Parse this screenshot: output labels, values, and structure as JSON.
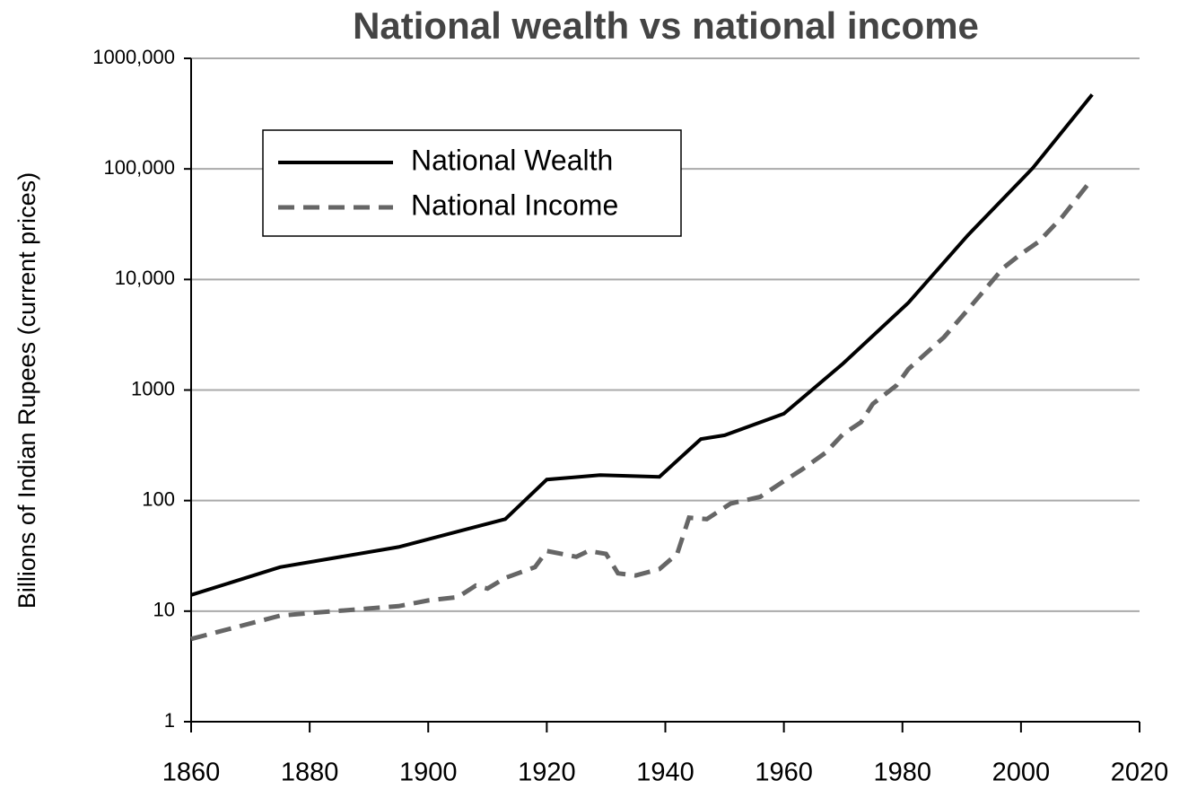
{
  "chart_data": {
    "type": "line",
    "title": "National wealth vs national income",
    "y_label": "Billions of Indian Rupees (current prices)",
    "log_y": true,
    "grid": true,
    "legend": "upper left",
    "xlim": [
      1860,
      2020
    ],
    "xticks": [
      1860,
      1880,
      1900,
      1920,
      1940,
      1960,
      1980,
      2000,
      2020
    ],
    "ylim": [
      1,
      1000000
    ],
    "yticks": [
      1,
      10,
      100,
      1000,
      {
        "value": 10000,
        "label": "10,000"
      },
      {
        "value": 100000,
        "label": "100,000"
      },
      {
        "value": 1000000,
        "label": "1000,000"
      }
    ],
    "series": [
      {
        "name": "National Wealth",
        "color": "#000000",
        "dash": false,
        "x": [
          1860,
          1875,
          1895,
          1913,
          1920,
          1929,
          1939,
          1946,
          1950,
          1960,
          1970,
          1981,
          1991,
          2002,
          2012
        ],
        "values": [
          14,
          25,
          38,
          68,
          155,
          170,
          164,
          360,
          390,
          610,
          1740,
          6160,
          25000,
          102000,
          470000
        ]
      },
      {
        "name": "National Income",
        "color": "#666666",
        "dash": true,
        "x": [
          1860,
          1875,
          1880,
          1895,
          1900,
          1905,
          1908,
          1910,
          1913,
          1918,
          1920,
          1925,
          1927,
          1930,
          1932,
          1935,
          1939,
          1942,
          1944,
          1947,
          1951,
          1956,
          1960,
          1963,
          1967,
          1970,
          1973,
          1975,
          1979,
          1981,
          1987,
          1991,
          1997,
          2000,
          2003,
          2007,
          2012
        ],
        "values": [
          5.6,
          9.1,
          9.6,
          11.1,
          12.5,
          13.4,
          17,
          16,
          20,
          25,
          35,
          31,
          35,
          33,
          22,
          21,
          24,
          33,
          70,
          68,
          94,
          108,
          150,
          190,
          270,
          400,
          510,
          750,
          1100,
          1550,
          3000,
          5300,
          12700,
          17000,
          22000,
          37000,
          81000
        ]
      }
    ]
  }
}
